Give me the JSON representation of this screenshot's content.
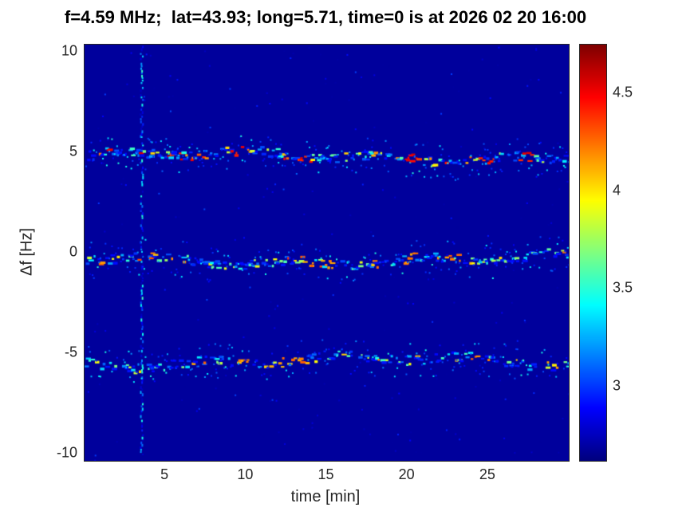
{
  "chart_data": {
    "type": "heatmap",
    "title": "f=4.59 MHz;  lat=43.93; long=5.71, time=0 is at 2026 02 20 16:00",
    "xlabel": "time [min]",
    "ylabel": "Δf [Hz]",
    "xlim": [
      0,
      30
    ],
    "ylim": [
      -10.35,
      10.35
    ],
    "xticks": [
      5,
      10,
      15,
      20,
      25
    ],
    "yticks": [
      10,
      5,
      0,
      -5,
      -10
    ],
    "grid": false,
    "colormap": "jet",
    "colorbar": {
      "position": "right",
      "ticks": [
        4.5,
        4,
        3.5,
        3
      ],
      "clim": [
        2.62,
        4.75
      ]
    },
    "background_value": 2.68,
    "background_speckles": {
      "count": 380,
      "max_val": 3.05
    },
    "vertical_line": {
      "time_min": 3.5,
      "min_val": 2.75,
      "max_val": 3.55
    },
    "bands": [
      {
        "center_hz": 4.8,
        "min_val": 2.9,
        "max_val": 4.6,
        "density": 0.6,
        "drift_hz": 0.18,
        "bright_times": [
          9.5,
          13.6,
          20.3,
          24.8,
          27.3
        ]
      },
      {
        "center_hz": -0.35,
        "min_val": 2.9,
        "max_val": 4.35,
        "density": 0.55,
        "drift_hz": 0.18,
        "bright_times": [
          13.8,
          15.0,
          20.2,
          22.8
        ]
      },
      {
        "center_hz": -5.4,
        "min_val": 2.9,
        "max_val": 4.3,
        "density": 0.5,
        "drift_hz": 0.2,
        "bright_times": [
          9.9,
          12.2,
          13.3,
          24.3,
          28.8
        ]
      }
    ],
    "noise_seed": 1234
  }
}
